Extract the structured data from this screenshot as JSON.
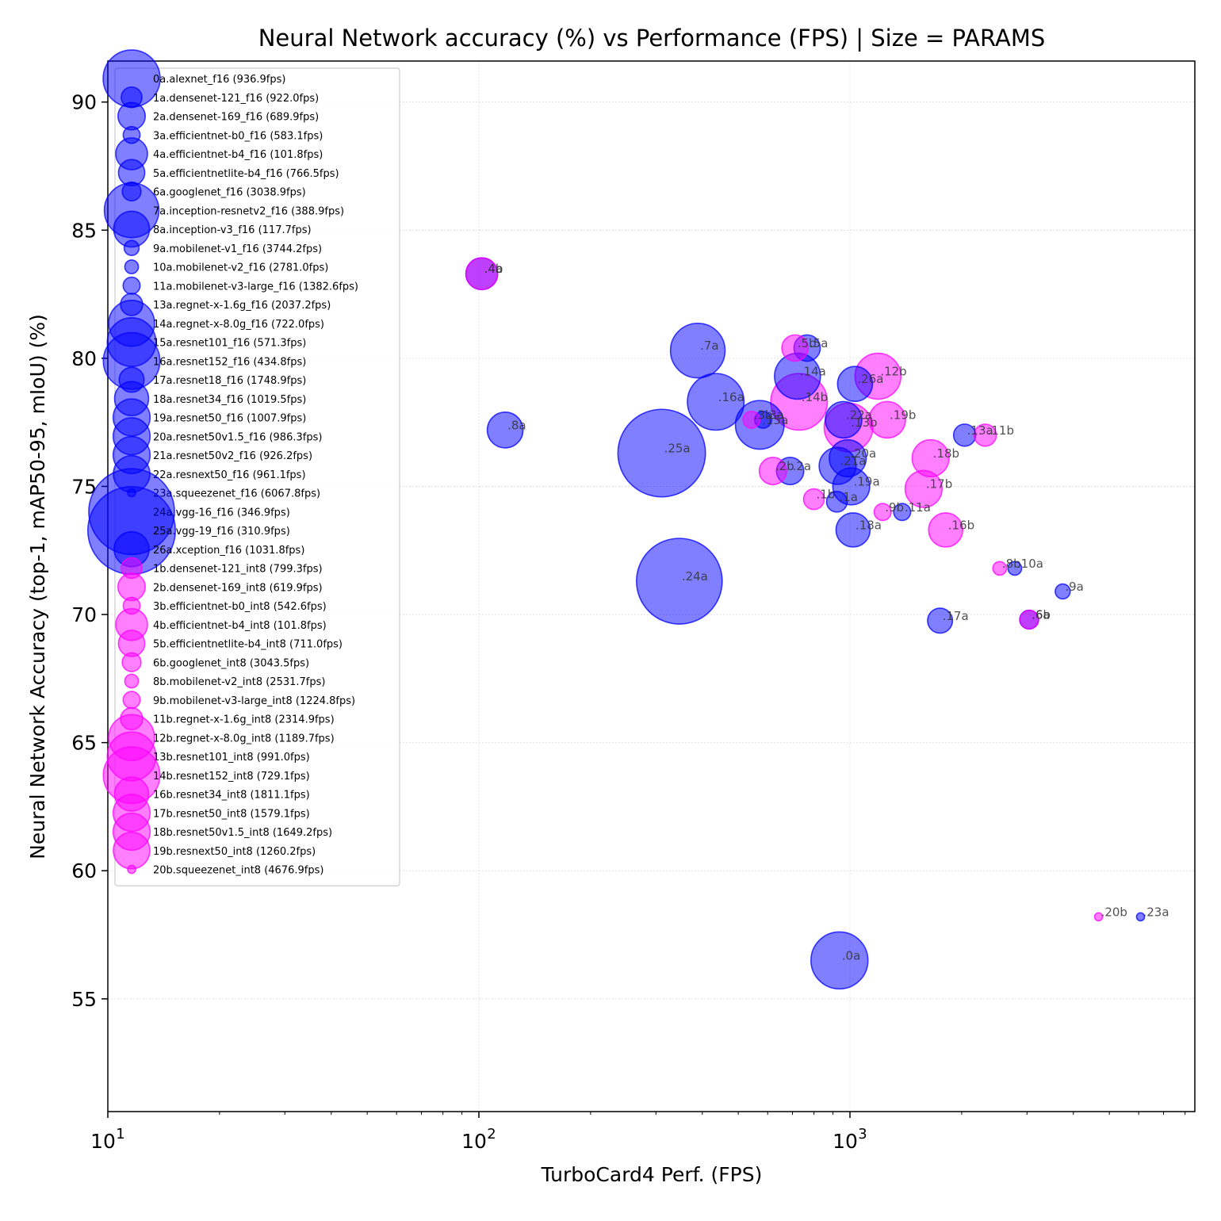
{
  "chart_data": {
    "type": "scatter",
    "title": "Neural Network accuracy (%) vs Performance (FPS) | Size = PARAMS",
    "xlabel": "TurboCard4 Perf. (FPS)",
    "ylabel": "Neural Network Accuracy (top-1, mAP50-95, mIoU) (%)",
    "x_scale": "log",
    "xlim": [
      10,
      8500
    ],
    "ylim": [
      50.6,
      91.6
    ],
    "x_ticks": [
      10,
      100,
      1000
    ],
    "x_tick_labels": [
      "10",
      "10",
      "10"
    ],
    "x_tick_exponents": [
      "1",
      "2",
      "3"
    ],
    "y_ticks": [
      55,
      60,
      65,
      70,
      75,
      80,
      85,
      90
    ],
    "y_tick_labels": [
      "55",
      "60",
      "65",
      "70",
      "75",
      "80",
      "85",
      "90"
    ],
    "grid": true,
    "legend_position": "upper-left",
    "series_colors": {
      "f16": "#0000ff",
      "int8": "#ff00ff"
    },
    "points": [
      {
        "id": "0a",
        "legend": "0a.alexnet_f16 (936.9fps)",
        "fps": 936.9,
        "acc": 56.5,
        "params": 61,
        "group": "f16"
      },
      {
        "id": "1a",
        "legend": "1a.densenet-121_f16 (922.0fps)",
        "fps": 922.0,
        "acc": 74.4,
        "params": 8,
        "group": "f16"
      },
      {
        "id": "2a",
        "legend": "2a.densenet-169_f16 (689.9fps)",
        "fps": 689.9,
        "acc": 75.6,
        "params": 14,
        "group": "f16"
      },
      {
        "id": "3a",
        "legend": "3a.efficientnet-b0_f16 (583.1fps)",
        "fps": 583.1,
        "acc": 77.6,
        "params": 5.3,
        "group": "f16"
      },
      {
        "id": "4a",
        "legend": "4a.efficientnet-b4_f16 (101.8fps)",
        "fps": 101.8,
        "acc": 83.3,
        "params": 19,
        "group": "f16"
      },
      {
        "id": "5a",
        "legend": "5a.efficientnetlite-b4_f16 (766.5fps)",
        "fps": 766.5,
        "acc": 80.4,
        "params": 13,
        "group": "f16"
      },
      {
        "id": "6a",
        "legend": "6a.googlenet_f16 (3038.9fps)",
        "fps": 3038.9,
        "acc": 69.8,
        "params": 6.6,
        "group": "f16"
      },
      {
        "id": "7a",
        "legend": "7a.inception-resnetv2_f16 (388.9fps)",
        "fps": 388.9,
        "acc": 80.3,
        "params": 56,
        "group": "f16"
      },
      {
        "id": "8a",
        "legend": "8a.inception-v3_f16 (117.7fps)",
        "fps": 117.7,
        "acc": 77.2,
        "params": 24,
        "group": "f16"
      },
      {
        "id": "9a",
        "legend": "9a.mobilenet-v1_f16 (3744.2fps)",
        "fps": 3744.2,
        "acc": 70.9,
        "params": 4.2,
        "group": "f16"
      },
      {
        "id": "10a",
        "legend": "10a.mobilenet-v2_f16 (2781.0fps)",
        "fps": 2781.0,
        "acc": 71.8,
        "params": 3.5,
        "group": "f16"
      },
      {
        "id": "11a",
        "legend": "11a.mobilenet-v3-large_f16 (1382.6fps)",
        "fps": 1382.6,
        "acc": 74.0,
        "params": 5.4,
        "group": "f16"
      },
      {
        "id": "13a",
        "legend": "13a.regnet-x-1.6g_f16 (2037.2fps)",
        "fps": 2037.2,
        "acc": 77.0,
        "params": 9.2,
        "group": "f16"
      },
      {
        "id": "14a",
        "legend": "14a.regnet-x-8.0g_f16 (722.0fps)",
        "fps": 722.0,
        "acc": 79.3,
        "params": 39.6,
        "group": "f16"
      },
      {
        "id": "15a",
        "legend": "15a.resnet101_f16 (571.3fps)",
        "fps": 571.3,
        "acc": 77.4,
        "params": 44.5,
        "group": "f16"
      },
      {
        "id": "16a",
        "legend": "16a.resnet152_f16 (434.8fps)",
        "fps": 434.8,
        "acc": 78.3,
        "params": 60.2,
        "group": "f16"
      },
      {
        "id": "17a",
        "legend": "17a.resnet18_f16 (1748.9fps)",
        "fps": 1748.9,
        "acc": 69.76,
        "params": 11.7,
        "group": "f16"
      },
      {
        "id": "18a",
        "legend": "18a.resnet34_f16 (1019.5fps)",
        "fps": 1019.5,
        "acc": 73.3,
        "params": 21.8,
        "group": "f16"
      },
      {
        "id": "19a",
        "legend": "19a.resnet50_f16 (1007.9fps)",
        "fps": 1007.9,
        "acc": 75.0,
        "params": 25.6,
        "group": "f16"
      },
      {
        "id": "20a",
        "legend": "20a.resnet50v1.5_f16 (986.3fps)",
        "fps": 986.3,
        "acc": 76.1,
        "params": 25.6,
        "group": "f16"
      },
      {
        "id": "21a",
        "legend": "21a.resnet50v2_f16 (926.2fps)",
        "fps": 926.2,
        "acc": 75.8,
        "params": 25.6,
        "group": "f16"
      },
      {
        "id": "22a",
        "legend": "22a.resnext50_f16 (961.1fps)",
        "fps": 961.1,
        "acc": 77.6,
        "params": 25,
        "group": "f16"
      },
      {
        "id": "23a",
        "legend": "23a.squeezenet_f16 (6067.8fps)",
        "fps": 6067.8,
        "acc": 58.2,
        "params": 1.2,
        "group": "f16"
      },
      {
        "id": "24a",
        "legend": "24a.vgg-16_f16 (346.9fps)",
        "fps": 346.9,
        "acc": 71.3,
        "params": 138,
        "group": "f16"
      },
      {
        "id": "25a",
        "legend": "25a.vgg-19_f16 (310.9fps)",
        "fps": 310.9,
        "acc": 76.3,
        "params": 144,
        "group": "f16"
      },
      {
        "id": "26a",
        "legend": "26a.xception_f16 (1031.8fps)",
        "fps": 1031.8,
        "acc": 79.0,
        "params": 22.9,
        "group": "f16"
      },
      {
        "id": "1b",
        "legend": "1b.densenet-121_int8 (799.3fps)",
        "fps": 799.3,
        "acc": 74.5,
        "params": 8,
        "group": "int8"
      },
      {
        "id": "2b",
        "legend": "2b.densenet-169_int8 (619.9fps)",
        "fps": 619.9,
        "acc": 75.6,
        "params": 14,
        "group": "int8"
      },
      {
        "id": "3b",
        "legend": "3b.efficientnet-b0_int8 (542.6fps)",
        "fps": 542.6,
        "acc": 77.6,
        "params": 5.3,
        "group": "int8"
      },
      {
        "id": "4b",
        "legend": "4b.efficientnet-b4_int8 (101.8fps)",
        "fps": 101.8,
        "acc": 83.3,
        "params": 19,
        "group": "int8"
      },
      {
        "id": "5b",
        "legend": "5b.efficientnetlite-b4_int8 (711.0fps)",
        "fps": 711.0,
        "acc": 80.4,
        "params": 13,
        "group": "int8"
      },
      {
        "id": "6b",
        "legend": "6b.googlenet_int8 (3043.5fps)",
        "fps": 3043.5,
        "acc": 69.8,
        "params": 6.6,
        "group": "int8"
      },
      {
        "id": "8b",
        "legend": "8b.mobilenet-v2_int8 (2531.7fps)",
        "fps": 2531.7,
        "acc": 71.8,
        "params": 3.5,
        "group": "int8"
      },
      {
        "id": "9b",
        "legend": "9b.mobilenet-v3-large_int8 (1224.8fps)",
        "fps": 1224.8,
        "acc": 74.0,
        "params": 5.4,
        "group": "int8"
      },
      {
        "id": "11b",
        "legend": "11b.regnet-x-1.6g_int8 (2314.9fps)",
        "fps": 2314.9,
        "acc": 77.0,
        "params": 9.2,
        "group": "int8"
      },
      {
        "id": "12b",
        "legend": "12b.regnet-x-8.0g_int8 (1189.7fps)",
        "fps": 1189.7,
        "acc": 79.3,
        "params": 39.6,
        "group": "int8"
      },
      {
        "id": "13b",
        "legend": "13b.resnet101_int8 (991.0fps)",
        "fps": 991.0,
        "acc": 77.3,
        "params": 44.5,
        "group": "int8"
      },
      {
        "id": "14b",
        "legend": "14b.resnet152_int8 (729.1fps)",
        "fps": 729.1,
        "acc": 78.3,
        "params": 60.2,
        "group": "int8"
      },
      {
        "id": "16b",
        "legend": "16b.resnet34_int8 (1811.1fps)",
        "fps": 1811.1,
        "acc": 73.3,
        "params": 21.8,
        "group": "int8"
      },
      {
        "id": "17b",
        "legend": "17b.resnet50_int8 (1579.1fps)",
        "fps": 1579.1,
        "acc": 74.9,
        "params": 25.6,
        "group": "int8"
      },
      {
        "id": "18b",
        "legend": "18b.resnet50v1.5_int8 (1649.2fps)",
        "fps": 1649.2,
        "acc": 76.1,
        "params": 25.6,
        "group": "int8"
      },
      {
        "id": "19b",
        "legend": "19b.resnext50_int8 (1260.2fps)",
        "fps": 1260.2,
        "acc": 77.6,
        "params": 25,
        "group": "int8"
      },
      {
        "id": "20b",
        "legend": "20b.squeezenet_int8 (4676.9fps)",
        "fps": 4676.9,
        "acc": 58.2,
        "params": 1.2,
        "group": "int8"
      }
    ]
  }
}
